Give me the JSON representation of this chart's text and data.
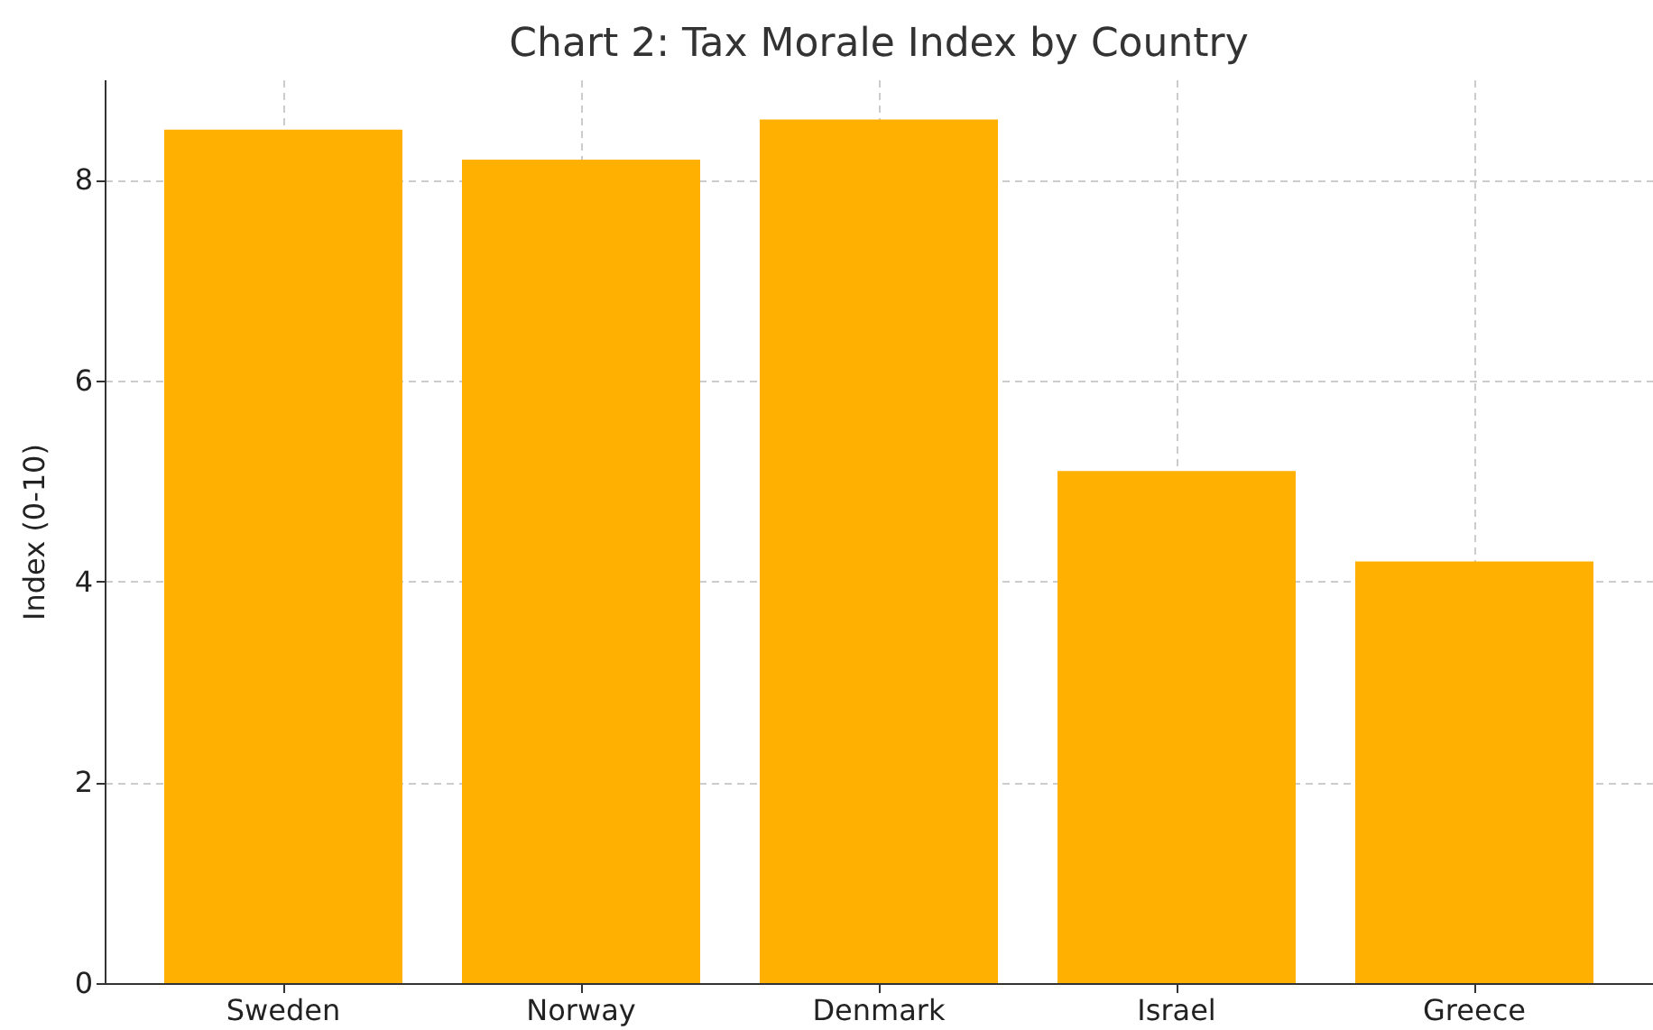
{
  "chart_data": {
    "type": "bar",
    "title": "Chart 2: Tax Morale Index by Country",
    "ylabel": "Index (0-10)",
    "categories": [
      "Sweden",
      "Norway",
      "Denmark",
      "Israel",
      "Greece"
    ],
    "values": [
      8.5,
      8.2,
      8.6,
      5.1,
      4.2
    ],
    "color": "#ffb000",
    "ylim": [
      0,
      9.0
    ],
    "yticks": [
      0,
      2,
      4,
      6,
      8
    ],
    "grid": true
  }
}
